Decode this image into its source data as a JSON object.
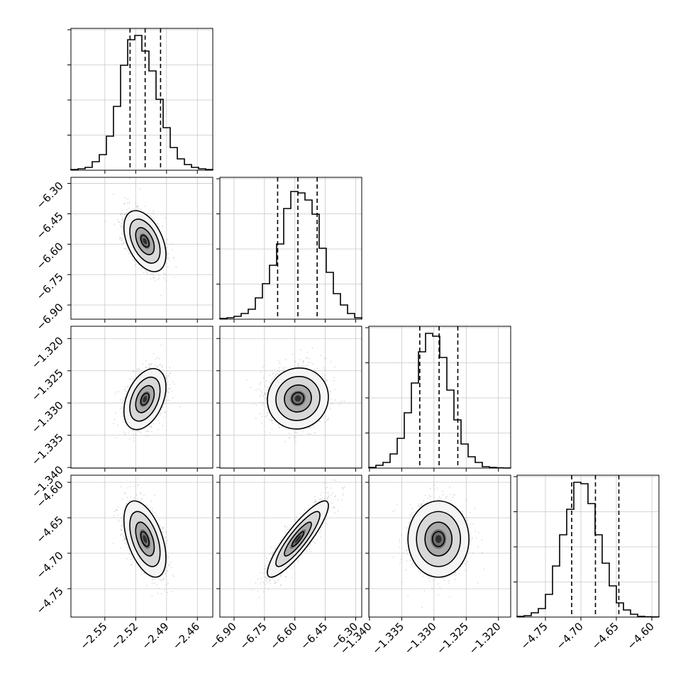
{
  "chart_data": {
    "type": "corner",
    "grid": true,
    "dims": [
      {
        "ticks": [
          -2.55,
          -2.52,
          -2.49,
          -2.46
        ],
        "tick_labels": [
          "−2.55",
          "−2.52",
          "−2.49",
          "−2.46"
        ],
        "range": [
          -2.583,
          -2.445
        ],
        "quantiles": [
          -2.5255,
          -2.5108,
          -2.4958
        ],
        "hist": [
          0.5,
          1,
          2,
          6,
          11,
          24,
          45,
          74,
          92,
          95,
          84,
          70,
          50,
          30,
          16,
          8,
          4,
          2,
          1,
          0.5
        ],
        "ymax": 100
      },
      {
        "ticks": [
          -6.9,
          -6.75,
          -6.6,
          -6.45,
          -6.3
        ],
        "tick_labels": [
          "−6.90",
          "−6.75",
          "−6.60",
          "−6.45",
          "−6.30"
        ],
        "range": [
          -6.97,
          -6.27
        ],
        "quantiles": [
          -6.685,
          -6.585,
          -6.49
        ],
        "hist": [
          0.5,
          1,
          2,
          4,
          7,
          15,
          25,
          38,
          53,
          78,
          90,
          89,
          84,
          74,
          50,
          33,
          18,
          10,
          4,
          1
        ],
        "ymax": 100
      },
      {
        "ticks": [
          -1.34,
          -1.335,
          -1.33,
          -1.325,
          -1.32
        ],
        "tick_labels": [
          "−1.340",
          "−1.335",
          "−1.330",
          "−1.325",
          "−1.320"
        ],
        "range": [
          -1.3401,
          -1.3181
        ],
        "quantiles": [
          -1.3322,
          -1.3292,
          -1.3263
        ],
        "hist": [
          0.5,
          2,
          4,
          10,
          21,
          39,
          60,
          82,
          95,
          93,
          78,
          55,
          34,
          17,
          8,
          4,
          1,
          0.5,
          0.2,
          0.1
        ],
        "ymax": 100
      },
      {
        "ticks": [
          -4.75,
          -4.7,
          -4.65,
          -4.6
        ],
        "tick_labels": [
          "−4.75",
          "−4.70",
          "−4.65",
          "−4.60"
        ],
        "range": [
          -4.79,
          -4.59
        ],
        "quantiles": [
          -4.713,
          -4.6795,
          -4.6465
        ],
        "hist": [
          0.5,
          1,
          3,
          6,
          16,
          36,
          58,
          76,
          95,
          94,
          80,
          58,
          38,
          22,
          10,
          5,
          2,
          0.5,
          0.2,
          0.1
        ],
        "ymax": 100
      }
    ],
    "pairs": [
      {
        "x": 0,
        "y": 1,
        "mean": [
          -2.511,
          -6.585
        ],
        "sd": [
          0.0095,
          0.07
        ],
        "rho": -0.45
      },
      {
        "x": 0,
        "y": 2,
        "mean": [
          -2.511,
          -1.3294
        ],
        "sd": [
          0.0095,
          0.0022
        ],
        "rho": 0.4
      },
      {
        "x": 1,
        "y": 2,
        "mean": [
          -6.585,
          -1.3293
        ],
        "sd": [
          0.07,
          0.0022
        ],
        "rho": 0.05
      },
      {
        "x": 0,
        "y": 3,
        "mean": [
          -2.511,
          -4.68
        ],
        "sd": [
          0.0095,
          0.025
        ],
        "rho": -0.5
      },
      {
        "x": 1,
        "y": 3,
        "mean": [
          -6.585,
          -4.68
        ],
        "sd": [
          0.07,
          0.025
        ],
        "rho": 0.88
      },
      {
        "x": 2,
        "y": 3,
        "mean": [
          -1.3293,
          -4.68
        ],
        "sd": [
          0.0022,
          0.025
        ],
        "rho": 0.0
      }
    ]
  }
}
